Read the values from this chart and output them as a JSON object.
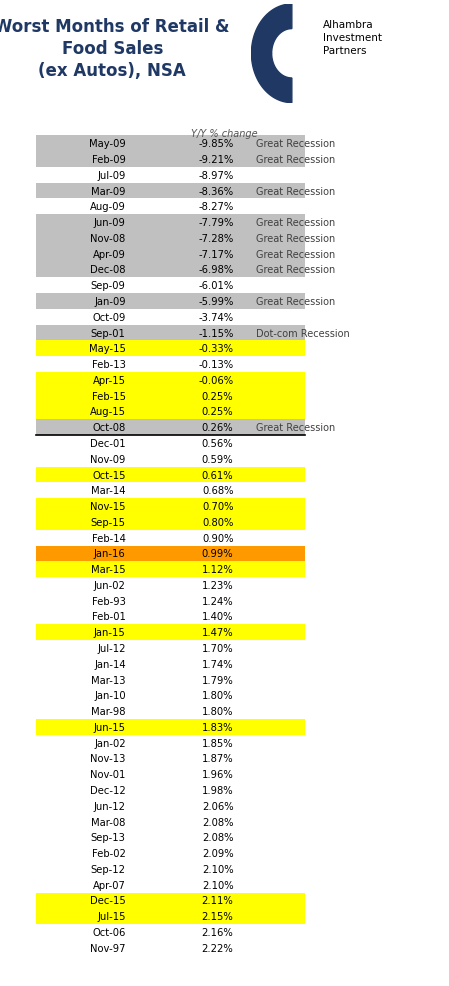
{
  "title": "Worst Months of Retail &\nFood Sales\n(ex Autos), NSA",
  "subtitle": "Y/Y % change",
  "rows": [
    {
      "label": "May-09",
      "value": "-9.85%",
      "note": "Great Recession",
      "bg": "#c0c0c0"
    },
    {
      "label": "Feb-09",
      "value": "-9.21%",
      "note": "Great Recession",
      "bg": "#c0c0c0"
    },
    {
      "label": "Jul-09",
      "value": "-8.97%",
      "note": "",
      "bg": "#ffffff"
    },
    {
      "label": "Mar-09",
      "value": "-8.36%",
      "note": "Great Recession",
      "bg": "#c0c0c0"
    },
    {
      "label": "Aug-09",
      "value": "-8.27%",
      "note": "",
      "bg": "#ffffff"
    },
    {
      "label": "Jun-09",
      "value": "-7.79%",
      "note": "Great Recession",
      "bg": "#c0c0c0"
    },
    {
      "label": "Nov-08",
      "value": "-7.28%",
      "note": "Great Recession",
      "bg": "#c0c0c0"
    },
    {
      "label": "Apr-09",
      "value": "-7.17%",
      "note": "Great Recession",
      "bg": "#c0c0c0"
    },
    {
      "label": "Dec-08",
      "value": "-6.98%",
      "note": "Great Recession",
      "bg": "#c0c0c0"
    },
    {
      "label": "Sep-09",
      "value": "-6.01%",
      "note": "",
      "bg": "#ffffff"
    },
    {
      "label": "Jan-09",
      "value": "-5.99%",
      "note": "Great Recession",
      "bg": "#c0c0c0"
    },
    {
      "label": "Oct-09",
      "value": "-3.74%",
      "note": "",
      "bg": "#ffffff"
    },
    {
      "label": "Sep-01",
      "value": "-1.15%",
      "note": "Dot-com Recession",
      "bg": "#c0c0c0"
    },
    {
      "label": "May-15",
      "value": "-0.33%",
      "note": "",
      "bg": "#ffff00"
    },
    {
      "label": "Feb-13",
      "value": "-0.13%",
      "note": "",
      "bg": "#ffffff"
    },
    {
      "label": "Apr-15",
      "value": "-0.06%",
      "note": "",
      "bg": "#ffff00"
    },
    {
      "label": "Feb-15",
      "value": "0.25%",
      "note": "",
      "bg": "#ffff00"
    },
    {
      "label": "Aug-15",
      "value": "0.25%",
      "note": "",
      "bg": "#ffff00"
    },
    {
      "label": "Oct-08",
      "value": "0.26%",
      "note": "Great Recession",
      "bg": "#c0c0c0"
    },
    {
      "label": "Dec-01",
      "value": "0.56%",
      "note": "",
      "bg": "#ffffff"
    },
    {
      "label": "Nov-09",
      "value": "0.59%",
      "note": "",
      "bg": "#ffffff"
    },
    {
      "label": "Oct-15",
      "value": "0.61%",
      "note": "",
      "bg": "#ffff00"
    },
    {
      "label": "Mar-14",
      "value": "0.68%",
      "note": "",
      "bg": "#ffffff"
    },
    {
      "label": "Nov-15",
      "value": "0.70%",
      "note": "",
      "bg": "#ffff00"
    },
    {
      "label": "Sep-15",
      "value": "0.80%",
      "note": "",
      "bg": "#ffff00"
    },
    {
      "label": "Feb-14",
      "value": "0.90%",
      "note": "",
      "bg": "#ffffff"
    },
    {
      "label": "Jan-16",
      "value": "0.99%",
      "note": "",
      "bg": "#ff9900"
    },
    {
      "label": "Mar-15",
      "value": "1.12%",
      "note": "",
      "bg": "#ffff00"
    },
    {
      "label": "Jun-02",
      "value": "1.23%",
      "note": "",
      "bg": "#ffffff"
    },
    {
      "label": "Feb-93",
      "value": "1.24%",
      "note": "",
      "bg": "#ffffff"
    },
    {
      "label": "Feb-01",
      "value": "1.40%",
      "note": "",
      "bg": "#ffffff"
    },
    {
      "label": "Jan-15",
      "value": "1.47%",
      "note": "",
      "bg": "#ffff00"
    },
    {
      "label": "Jul-12",
      "value": "1.70%",
      "note": "",
      "bg": "#ffffff"
    },
    {
      "label": "Jan-14",
      "value": "1.74%",
      "note": "",
      "bg": "#ffffff"
    },
    {
      "label": "Mar-13",
      "value": "1.79%",
      "note": "",
      "bg": "#ffffff"
    },
    {
      "label": "Jan-10",
      "value": "1.80%",
      "note": "",
      "bg": "#ffffff"
    },
    {
      "label": "Mar-98",
      "value": "1.80%",
      "note": "",
      "bg": "#ffffff"
    },
    {
      "label": "Jun-15",
      "value": "1.83%",
      "note": "",
      "bg": "#ffff00"
    },
    {
      "label": "Jan-02",
      "value": "1.85%",
      "note": "",
      "bg": "#ffffff"
    },
    {
      "label": "Nov-13",
      "value": "1.87%",
      "note": "",
      "bg": "#ffffff"
    },
    {
      "label": "Nov-01",
      "value": "1.96%",
      "note": "",
      "bg": "#ffffff"
    },
    {
      "label": "Dec-12",
      "value": "1.98%",
      "note": "",
      "bg": "#ffffff"
    },
    {
      "label": "Jun-12",
      "value": "2.06%",
      "note": "",
      "bg": "#ffffff"
    },
    {
      "label": "Mar-08",
      "value": "2.08%",
      "note": "",
      "bg": "#ffffff"
    },
    {
      "label": "Sep-13",
      "value": "2.08%",
      "note": "",
      "bg": "#ffffff"
    },
    {
      "label": "Feb-02",
      "value": "2.09%",
      "note": "",
      "bg": "#ffffff"
    },
    {
      "label": "Sep-12",
      "value": "2.10%",
      "note": "",
      "bg": "#ffffff"
    },
    {
      "label": "Apr-07",
      "value": "2.10%",
      "note": "",
      "bg": "#ffffff"
    },
    {
      "label": "Dec-15",
      "value": "2.11%",
      "note": "",
      "bg": "#ffff00"
    },
    {
      "label": "Jul-15",
      "value": "2.15%",
      "note": "",
      "bg": "#ffff00"
    },
    {
      "label": "Oct-06",
      "value": "2.16%",
      "note": "",
      "bg": "#ffffff"
    },
    {
      "label": "Nov-97",
      "value": "2.22%",
      "note": "",
      "bg": "#ffffff"
    }
  ],
  "divider_after": 19,
  "title_color": "#1f3864",
  "text_color": "#000000",
  "note_color": "#404040"
}
